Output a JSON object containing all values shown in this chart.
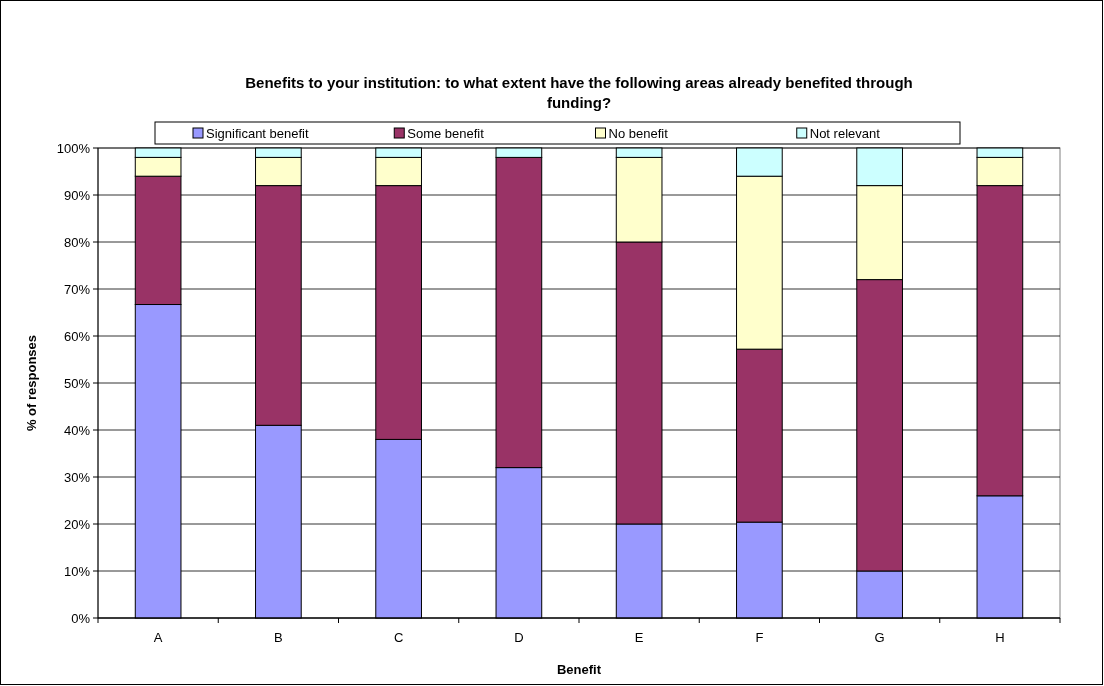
{
  "chart_data": {
    "type": "bar",
    "title": "Benefits to your institution: to what extent have the following areas already benefited through funding?",
    "xlabel": "Benefit",
    "ylabel": "% of responses",
    "categories": [
      "A",
      "B",
      "C",
      "D",
      "E",
      "F",
      "G",
      "H"
    ],
    "stacked": true,
    "series": [
      {
        "name": "Significant benefit",
        "color": "#9999ff",
        "values": [
          66.7,
          41,
          38,
          32,
          20,
          20.4,
          10,
          26
        ]
      },
      {
        "name": "Some benefit",
        "color": "#993366",
        "values": [
          27.3,
          51,
          54,
          66,
          60,
          36.8,
          62,
          66
        ]
      },
      {
        "name": "No benefit",
        "color": "#ffffcc",
        "values": [
          4,
          6,
          6,
          0,
          18,
          36.8,
          20,
          6
        ]
      },
      {
        "name": "Not relevant",
        "color": "#ccffff",
        "values": [
          2,
          2,
          2,
          2,
          2,
          6,
          8,
          2
        ]
      }
    ],
    "ylim": [
      0,
      100
    ],
    "yticks": [
      {
        "value": 0,
        "label": "0%"
      },
      {
        "value": 10,
        "label": "10%"
      },
      {
        "value": 20,
        "label": "20%"
      },
      {
        "value": 30,
        "label": "30%"
      },
      {
        "value": 40,
        "label": "40%"
      },
      {
        "value": 50,
        "label": "50%"
      },
      {
        "value": 60,
        "label": "60%"
      },
      {
        "value": 70,
        "label": "70%"
      },
      {
        "value": 80,
        "label": "80%"
      },
      {
        "value": 90,
        "label": "90%"
      },
      {
        "value": 100,
        "label": "100%"
      }
    ],
    "grid": "y",
    "legend": "top"
  }
}
